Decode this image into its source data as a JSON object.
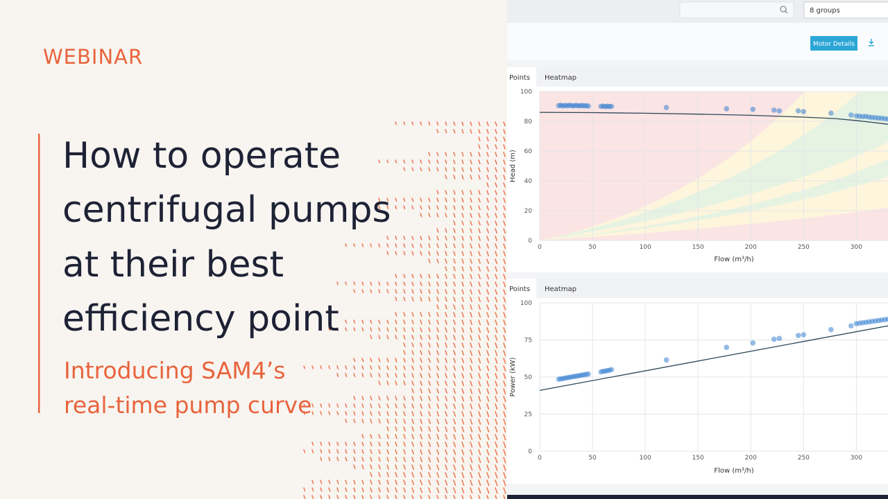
{
  "slide": {
    "label": "WEBINAR",
    "title_lines": [
      "How to operate",
      "centrifugal pumps",
      "at their best",
      "efficiency point"
    ],
    "subtitle_lines": [
      "Introducing SAM4’s",
      "real-time pump curve"
    ]
  },
  "app": {
    "group_select": "8 groups",
    "button": "Motor Details"
  },
  "chart_data": [
    {
      "type": "scatter",
      "tabs": [
        "Points",
        "Heatmap"
      ],
      "xlabel": "Flow (m³/h)",
      "ylabel": "Head (m)",
      "xlim": [
        0,
        330
      ],
      "ylim": [
        0,
        100
      ],
      "xticks": [
        0,
        50,
        100,
        150,
        200,
        250,
        300
      ],
      "yticks": [
        0,
        20,
        40,
        60,
        80,
        100
      ],
      "grid": true,
      "points": {
        "color": "#3a82d2",
        "x": [
          18,
          20,
          22,
          24,
          26,
          28,
          30,
          32,
          34,
          36,
          38,
          40,
          42,
          44,
          46,
          58,
          60,
          62,
          64,
          66,
          68,
          120,
          177,
          202,
          222,
          227,
          245,
          250,
          276,
          295,
          300,
          303,
          306,
          309,
          312,
          315,
          318,
          321,
          324,
          327,
          330
        ],
        "y": [
          90.5,
          90.8,
          90.3,
          90.7,
          90.4,
          90.8,
          90.5,
          90.3,
          90.7,
          90.5,
          90.4,
          90.6,
          90.3,
          90.5,
          90.2,
          90,
          90.2,
          89.9,
          90.1,
          89.9,
          90,
          89.2,
          88.4,
          88,
          87.5,
          87,
          87,
          86.5,
          85.5,
          84.2,
          83.6,
          83.4,
          83.1,
          83.3,
          82.8,
          82.6,
          82.4,
          82.2,
          82,
          81.8,
          81.5
        ]
      },
      "curve": {
        "color": "#2c4656",
        "x": [
          0,
          50,
          100,
          150,
          200,
          250,
          280,
          300,
          315,
          330
        ],
        "y": [
          86,
          85.8,
          85.4,
          84.8,
          84,
          82.8,
          81.8,
          80.5,
          79.3,
          78
        ]
      }
    },
    {
      "type": "scatter",
      "tabs": [
        "Points",
        "Heatmap"
      ],
      "xlabel": "Flow (m³/h)",
      "ylabel": "Power (kW)",
      "xlim": [
        0,
        330
      ],
      "ylim": [
        0,
        100
      ],
      "xticks": [
        0,
        50,
        100,
        150,
        200,
        250,
        300
      ],
      "yticks": [
        0,
        25,
        50,
        75,
        100
      ],
      "grid": true,
      "points": {
        "color": "#3a82d2",
        "x": [
          18,
          20,
          22,
          24,
          26,
          28,
          30,
          32,
          34,
          36,
          38,
          40,
          42,
          44,
          46,
          58,
          60,
          62,
          64,
          66,
          68,
          120,
          177,
          202,
          222,
          227,
          245,
          250,
          276,
          295,
          300,
          303,
          306,
          309,
          312,
          315,
          318,
          321,
          324,
          327,
          330
        ],
        "y": [
          48.5,
          48.8,
          49,
          49.3,
          49.5,
          49.8,
          50,
          50.3,
          50.5,
          50.8,
          51,
          51.3,
          51.5,
          51.8,
          52,
          53.5,
          53.8,
          54,
          54.3,
          54.6,
          55,
          61.5,
          70,
          73,
          75.5,
          76,
          78,
          78.5,
          82,
          84.5,
          86,
          86.3,
          86.6,
          86.9,
          87.2,
          87.5,
          87.8,
          88.1,
          88.4,
          88.7,
          89
        ]
      },
      "curve": {
        "color": "#2c4656",
        "x": [
          0,
          330
        ],
        "y": [
          41,
          84.5
        ]
      }
    }
  ]
}
